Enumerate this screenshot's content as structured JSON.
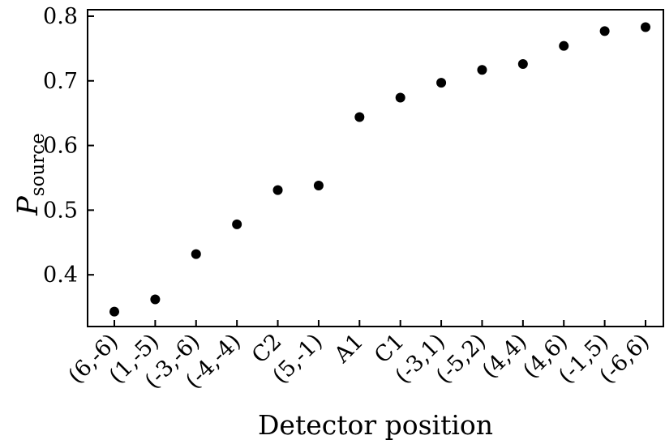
{
  "chart_data": {
    "type": "scatter",
    "title": "",
    "xlabel": "Detector position",
    "ylabel": "P",
    "ylabel_subscript": "source",
    "categories": [
      "(6,-6)",
      "(1,-5)",
      "(-3,-6)",
      "(-4,-4)",
      "C2",
      "(5,-1)",
      "A1",
      "C1",
      "(-3,1)",
      "(-5,2)",
      "(4,4)",
      "(4,6)",
      "(-1,5)",
      "(-6,6)"
    ],
    "values": [
      0.343,
      0.362,
      0.432,
      0.478,
      0.531,
      0.538,
      0.644,
      0.674,
      0.697,
      0.717,
      0.726,
      0.754,
      0.777,
      0.783
    ],
    "yticks": [
      "0.4",
      "0.5",
      "0.6",
      "0.7",
      "0.8"
    ],
    "ylim": [
      0.32,
      0.81
    ],
    "grid": false,
    "marker_color": "#000000"
  }
}
